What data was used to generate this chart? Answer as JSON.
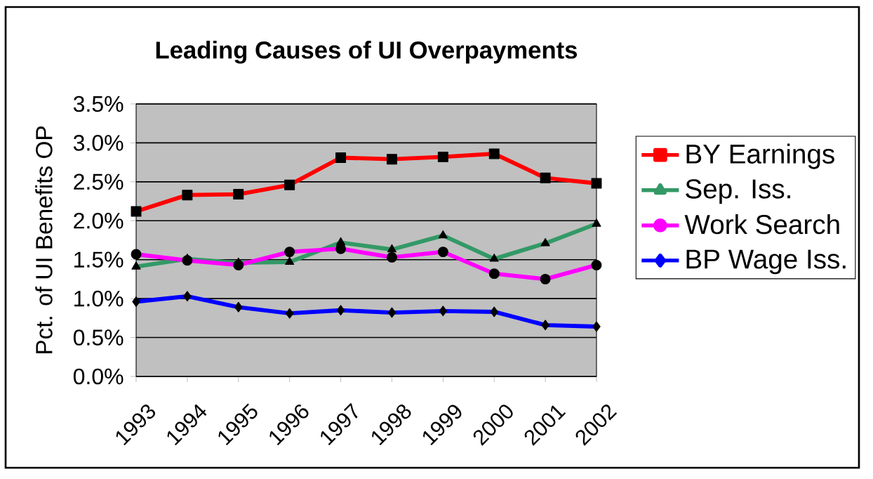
{
  "chart_data": {
    "type": "line",
    "title": "Leading Causes of UI Overpayments",
    "ylabel": "Pct. of UI Benefits OP",
    "categories": [
      "1993",
      "1994",
      "1995",
      "1996",
      "1997",
      "1998",
      "1999",
      "2000",
      "2001",
      "2002"
    ],
    "series": [
      {
        "name": "BY Earnings",
        "color": "#ff0000",
        "marker": "square",
        "values": [
          2.12,
          2.33,
          2.34,
          2.46,
          2.81,
          2.79,
          2.82,
          2.86,
          2.55,
          2.48
        ]
      },
      {
        "name": "Sep. Iss.",
        "color": "#339966",
        "marker": "triangle",
        "values": [
          1.41,
          1.51,
          1.46,
          1.47,
          1.72,
          1.63,
          1.81,
          1.51,
          1.71,
          1.96
        ]
      },
      {
        "name": "Work Search",
        "color": "#ff00ff",
        "marker": "circle",
        "values": [
          1.57,
          1.49,
          1.43,
          1.6,
          1.64,
          1.53,
          1.6,
          1.32,
          1.25,
          1.43
        ]
      },
      {
        "name": "BP Wage Iss.",
        "color": "#0000ff",
        "marker": "diamond",
        "values": [
          0.96,
          1.03,
          0.89,
          0.81,
          0.85,
          0.82,
          0.84,
          0.83,
          0.66,
          0.64
        ]
      }
    ],
    "ylim": [
      0,
      3.5
    ],
    "yticks": [
      {
        "value": 0,
        "label": "0.0%"
      },
      {
        "value": 0.5,
        "label": "0.5%"
      },
      {
        "value": 1,
        "label": "1.0%"
      },
      {
        "value": 1.5,
        "label": "1.5%"
      },
      {
        "value": 2,
        "label": "2.0%"
      },
      {
        "value": 2.5,
        "label": "2.5%"
      },
      {
        "value": 3,
        "label": "3.0%"
      },
      {
        "value": 3.5,
        "label": "3.5%"
      }
    ],
    "grid": "y",
    "legend": "right",
    "line_style": "solid"
  }
}
